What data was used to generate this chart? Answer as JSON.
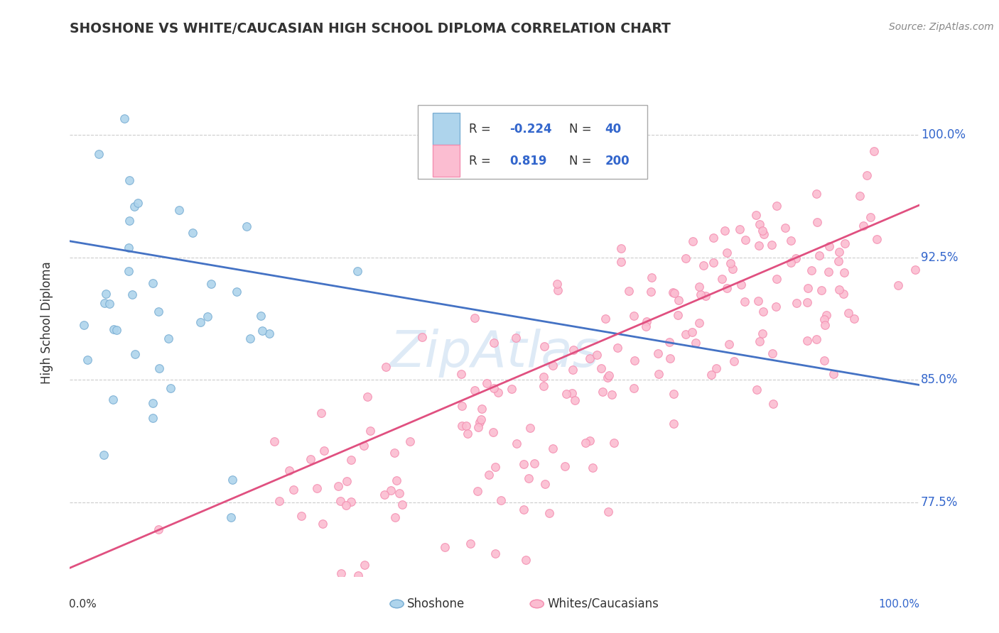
{
  "title": "SHOSHONE VS WHITE/CAUCASIAN HIGH SCHOOL DIPLOMA CORRELATION CHART",
  "source": "Source: ZipAtlas.com",
  "ylabel": "High School Diploma",
  "ytick_labels": [
    "77.5%",
    "85.0%",
    "92.5%",
    "100.0%"
  ],
  "ytick_values": [
    0.775,
    0.85,
    0.925,
    1.0
  ],
  "blue_color": "#7BAFD4",
  "blue_face": "#AED4EC",
  "pink_color": "#F48FB1",
  "pink_face": "#FBBDD1",
  "trend_blue": "#4472C4",
  "trend_pink": "#E05080",
  "watermark_color": "#C8DCF0",
  "blue_r": -0.224,
  "blue_n": 40,
  "pink_r": 0.819,
  "pink_n": 200,
  "blue_seed": 42,
  "pink_seed": 99,
  "xmin": 0.0,
  "xmax": 1.0,
  "ymin": 0.73,
  "ymax": 1.04,
  "blue_trend_start": 0.935,
  "blue_trend_end": 0.847,
  "pink_trend_start": 0.735,
  "pink_trend_end": 0.957
}
